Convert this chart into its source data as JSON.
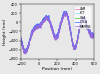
{
  "title": "",
  "xlabel": "Position (mm)",
  "ylabel": "Height (nm)",
  "xlim": [
    -200,
    600
  ],
  "ylim": [
    -800,
    400
  ],
  "yticks": [
    -800,
    -600,
    -400,
    -200,
    0,
    200,
    400
  ],
  "xticks": [
    -200,
    0,
    200,
    400,
    600
  ],
  "legend": [
    "LAM",
    "KCT",
    "GSA",
    "C.S.A",
    "MAMMS"
  ],
  "colors": [
    "#dd88bb",
    "#88ddff",
    "#44cc44",
    "#4466ff",
    "#9966dd"
  ],
  "linewidths": [
    0.6,
    0.6,
    0.6,
    0.6,
    0.6
  ],
  "figsize": [
    1.0,
    0.74
  ],
  "dpi": 100,
  "bg_color": "#e8e8e8"
}
